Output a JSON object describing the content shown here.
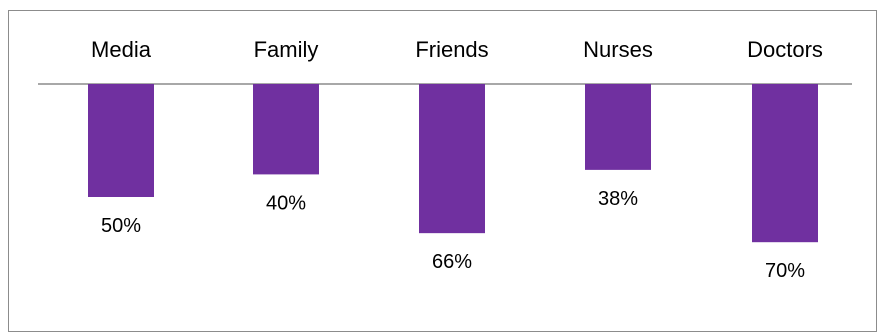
{
  "chart_data": {
    "type": "bar",
    "orientation": "vertical-inverted",
    "categories": [
      "Media",
      "Family",
      "Friends",
      "Nurses",
      "Doctors"
    ],
    "values": [
      50,
      40,
      66,
      38,
      70
    ],
    "value_labels": [
      "50%",
      "40%",
      "66%",
      "38%",
      "70%"
    ],
    "unit": "%",
    "title": "",
    "xlabel": "",
    "ylabel": "",
    "ylim": [
      0,
      70
    ],
    "grid": false,
    "legend": "none",
    "bar_color": "#7030a0",
    "axis_color": "#8c8c8c"
  }
}
